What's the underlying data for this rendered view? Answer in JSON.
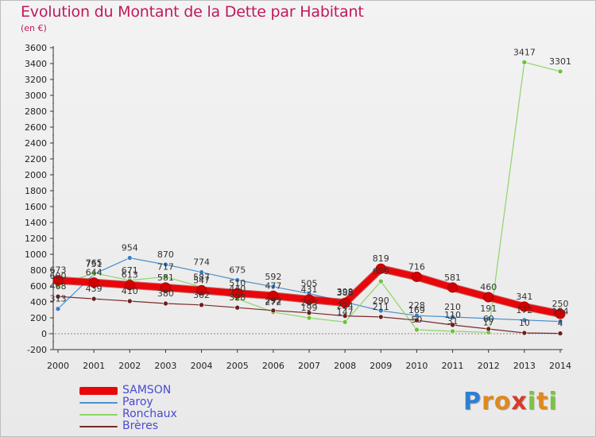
{
  "title": "Evolution du Montant de la Dette par Habitant",
  "subtitle": "(en €)",
  "logo": {
    "letters": [
      "P",
      "r",
      "o",
      "x",
      "i",
      "t",
      "i"
    ],
    "colors": [
      "#2f7fd1",
      "#e0891f",
      "#e0891f",
      "#d93a2b",
      "#7cc243",
      "#e0891f",
      "#7cc243"
    ]
  },
  "chart_data": {
    "type": "line",
    "x": [
      "2000",
      "2001",
      "2002",
      "2003",
      "2004",
      "2005",
      "2006",
      "2007",
      "2008",
      "2009",
      "2010",
      "2011",
      "2012",
      "2013",
      "2014"
    ],
    "ylim": [
      -200,
      3600
    ],
    "yticks": [
      "-200",
      "0",
      "200",
      "400",
      "600",
      "800",
      "1000",
      "1200",
      "1400",
      "1600",
      "1800",
      "2000",
      "2200",
      "2400",
      "2600",
      "2800",
      "3000",
      "3200",
      "3400",
      "3600"
    ],
    "grid": false,
    "legend_position": "bottom-left",
    "series": [
      {
        "name": "Paroy",
        "color": "#4b8fd0",
        "marker": "#3b7fc4",
        "width": 1.2,
        "values": [
          313,
          751,
          954,
          870,
          774,
          675,
          592,
          505,
          398,
          290,
          228,
          210,
          191,
          172,
          154
        ],
        "labels": [
          "313",
          "751",
          "954",
          "870",
          "774",
          "675",
          "592",
          "505",
          "398",
          "290",
          "228",
          "210",
          "191",
          "172",
          "154"
        ]
      },
      {
        "name": "Ronchaux",
        "color": "#8fd466",
        "marker": "#6cc33a",
        "width": 1.2,
        "values": [
          600,
          765,
          671,
          717,
          587,
          440,
          272,
          199,
          147,
          659,
          50,
          31,
          17,
          3417,
          3301
        ],
        "labels": [
          "600",
          "765",
          "671",
          "717",
          "587",
          "440",
          "272",
          "199",
          "147",
          "659",
          "50",
          "31",
          "17",
          "3417",
          "3301"
        ]
      },
      {
        "name": "Brères",
        "color": "#7a2a2a",
        "marker": "#6b1f1f",
        "width": 1.2,
        "values": [
          468,
          439,
          410,
          380,
          362,
          328,
          292,
          263,
          224,
          211,
          169,
          110,
          60,
          10,
          4
        ],
        "labels": [
          "468",
          "439",
          "410",
          "380",
          "362",
          "328",
          "292",
          "263",
          "224",
          "211",
          "169",
          "110",
          "60",
          "10",
          "4"
        ]
      },
      {
        "name": "SAMSON",
        "color": "#e8070b",
        "marker": "#d40000",
        "width": 8,
        "values": [
          673,
          644,
          613,
          581,
          547,
          510,
          477,
          431,
          388,
          819,
          716,
          581,
          460,
          341,
          250
        ],
        "labels": [
          "673",
          "644",
          "613",
          "581",
          "547",
          "510",
          "477",
          "431",
          "388",
          "819",
          "716",
          "581",
          "460",
          "341",
          "250"
        ]
      }
    ]
  },
  "legend": [
    {
      "name": "SAMSON",
      "color": "#e8070b",
      "thickness": 10
    },
    {
      "name": "Paroy",
      "color": "#4b8fd0",
      "thickness": 2
    },
    {
      "name": "Ronchaux",
      "color": "#8fd466",
      "thickness": 2
    },
    {
      "name": "Brères",
      "color": "#7a2a2a",
      "thickness": 2
    }
  ]
}
